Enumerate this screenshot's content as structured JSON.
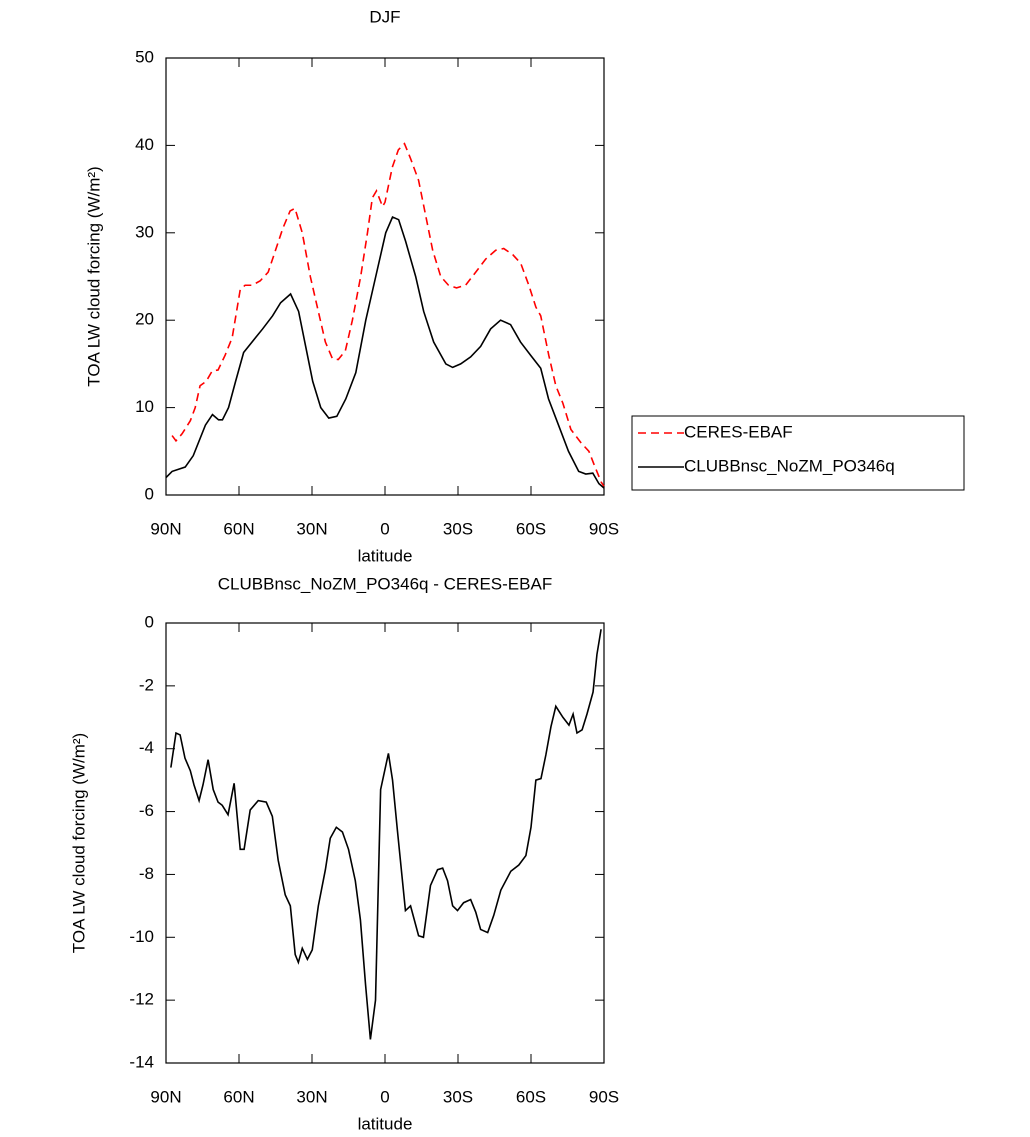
{
  "chart_data": [
    {
      "type": "line",
      "title": "DJF",
      "xlabel": "latitude",
      "ylabel": "TOA LW cloud forcing (W/m²)",
      "xlim": [
        90,
        -90
      ],
      "xticks": [
        {
          "value": 90,
          "label": "90N"
        },
        {
          "value": 60,
          "label": "60N"
        },
        {
          "value": 30,
          "label": "30N"
        },
        0,
        {
          "value": -30,
          "label": "30S"
        },
        {
          "value": -60,
          "label": "60S"
        },
        {
          "value": -90,
          "label": "90S"
        }
      ],
      "ylim": [
        0,
        50
      ],
      "yticks": [
        0,
        10,
        20,
        30,
        40,
        50
      ],
      "legend": "right",
      "series": [
        {
          "name": "CERES-EBAF",
          "color": "#ff0000",
          "linestyle": "dashed",
          "x": [
            87.5,
            85.9,
            83.4,
            80,
            78,
            76,
            73.5,
            71,
            68.6,
            65.7,
            62.8,
            59.5,
            57.5,
            54.6,
            51.3,
            48,
            45,
            42,
            39,
            37,
            34,
            30.7,
            27.4,
            24.5,
            21.6,
            19.2,
            16.3,
            13.4,
            10,
            7.2,
            5.2,
            3.5,
            1,
            0,
            -3,
            -5.5,
            -8,
            -10.5,
            -13.8,
            -16.7,
            -19.6,
            -22.9,
            -26.1,
            -29.4,
            -33.1,
            -37.3,
            -41.4,
            -45.5,
            -48.8,
            -52.5,
            -55.8,
            -59.1,
            -62,
            -64,
            -67.3,
            -70.2,
            -73.1,
            -76.4,
            -80.5,
            -83.8,
            -85.9,
            -88.8,
            -90
          ],
          "values": [
            6.8,
            6.2,
            7.0,
            8.5,
            10,
            12.5,
            13,
            14.2,
            14.3,
            16,
            18,
            23.5,
            24,
            24,
            24.5,
            25.5,
            28,
            30.5,
            32.5,
            32.8,
            30,
            25,
            21,
            17.5,
            15.6,
            15.5,
            16.5,
            20,
            25,
            30,
            34,
            34.8,
            33,
            33.5,
            37.5,
            39.5,
            40.2,
            38.5,
            36,
            32,
            28,
            25,
            24,
            23.7,
            24,
            25.5,
            27,
            28,
            28.2,
            27.5,
            26.5,
            24,
            21.5,
            20.5,
            16,
            12.5,
            10.5,
            7.5,
            6,
            5,
            3.5,
            1.5,
            1.0
          ]
        },
        {
          "name": "CLUBBnsc_NoZM_PO346q",
          "color": "#000000",
          "linestyle": "solid",
          "x": [
            90,
            87.5,
            82.1,
            78.8,
            73.8,
            70.9,
            68.4,
            66.8,
            64.3,
            61.4,
            58.1,
            53.2,
            50.3,
            46.2,
            42.9,
            38.8,
            35.5,
            32.6,
            29.7,
            26.4,
            23.1,
            19.8,
            16.1,
            12,
            7.9,
            3.8,
            -0.3,
            -3.1,
            -5.6,
            -8.5,
            -12.6,
            -15.9,
            -20,
            -25,
            -27.8,
            -31.1,
            -35.2,
            -39.3,
            -43.4,
            -47.5,
            -51.6,
            -55.7,
            -59.8,
            -64,
            -67.2,
            -71.3,
            -75.4,
            -79.6,
            -82.5,
            -85.4,
            -87.9,
            -90
          ],
          "values": [
            2.0,
            2.7,
            3.2,
            4.5,
            8.0,
            9.2,
            8.6,
            8.6,
            10,
            13,
            16.3,
            18,
            19,
            20.5,
            22,
            23,
            21,
            17,
            13,
            10,
            8.8,
            9,
            11,
            14,
            20,
            25,
            30,
            31.8,
            31.5,
            29,
            25,
            21,
            17.5,
            15,
            14.6,
            15,
            15.8,
            17,
            19,
            20,
            19.5,
            17.5,
            16,
            14.5,
            11,
            8,
            5,
            2.7,
            2.4,
            2.5,
            1.3,
            0.8
          ]
        }
      ]
    },
    {
      "type": "line",
      "title": "CLUBBnsc_NoZM_PO346q - CERES-EBAF",
      "xlabel": "latitude",
      "ylabel": "TOA LW cloud forcing (W/m²)",
      "xlim": [
        90,
        -90
      ],
      "xticks": [
        {
          "value": 90,
          "label": "90N"
        },
        {
          "value": 60,
          "label": "60N"
        },
        {
          "value": 30,
          "label": "30N"
        },
        0,
        {
          "value": -30,
          "label": "30S"
        },
        {
          "value": -60,
          "label": "60S"
        },
        {
          "value": -90,
          "label": "90S"
        }
      ],
      "ylim": [
        -14,
        0
      ],
      "yticks": [
        -14,
        -12,
        -10,
        -8,
        -6,
        -4,
        -2,
        0
      ],
      "series": [
        {
          "color": "#000000",
          "linestyle": "solid",
          "x": [
            88,
            85.9,
            84.2,
            82.2,
            80,
            78.5,
            76.4,
            74.8,
            72.7,
            70.6,
            68.6,
            66.9,
            64.5,
            62,
            59.5,
            57.9,
            55.4,
            52.1,
            48.8,
            46.3,
            43.9,
            41,
            38.9,
            36.9,
            35.6,
            34,
            31.9,
            29.9,
            27.4,
            24.5,
            22.5,
            20,
            17.5,
            15,
            12.2,
            10.1,
            8,
            6,
            3.9,
            1.8,
            -1.4,
            -3.1,
            -5.1,
            -8.4,
            -10.5,
            -13.8,
            -15.8,
            -18.7,
            -21.6,
            -23.7,
            -25.7,
            -27.8,
            -29.8,
            -32.3,
            -35.2,
            -37.3,
            -39.3,
            -42.2,
            -44.7,
            -47.6,
            -51.7,
            -55,
            -57.9,
            -60,
            -62,
            -64.1,
            -66.1,
            -68.2,
            -70.2,
            -73.1,
            -75.6,
            -77.3,
            -78.9,
            -81,
            -83,
            -85.5,
            -87.1,
            -88.8
          ],
          "values": [
            -4.6,
            -3.5,
            -3.56,
            -4.3,
            -4.7,
            -5.15,
            -5.65,
            -5.15,
            -4.35,
            -5.3,
            -5.7,
            -5.8,
            -6.1,
            -5.1,
            -7.2,
            -7.2,
            -5.95,
            -5.65,
            -5.7,
            -6.15,
            -7.55,
            -8.65,
            -9.0,
            -10.55,
            -10.8,
            -10.35,
            -10.7,
            -10.4,
            -9.0,
            -7.85,
            -6.85,
            -6.5,
            -6.65,
            -7.2,
            -8.2,
            -9.45,
            -11.5,
            -13.25,
            -12.0,
            -5.3,
            -4.15,
            -5.0,
            -6.6,
            -9.15,
            -9.0,
            -9.95,
            -10.0,
            -8.35,
            -7.85,
            -7.8,
            -8.2,
            -9.0,
            -9.15,
            -8.9,
            -8.8,
            -9.2,
            -9.75,
            -9.85,
            -9.3,
            -8.5,
            -7.9,
            -7.7,
            -7.4,
            -6.5,
            -5.0,
            -4.95,
            -4.2,
            -3.3,
            -2.65,
            -3.0,
            -3.25,
            -2.9,
            -3.5,
            -3.4,
            -2.9,
            -2.2,
            -1.0,
            -0.2
          ]
        }
      ]
    }
  ]
}
